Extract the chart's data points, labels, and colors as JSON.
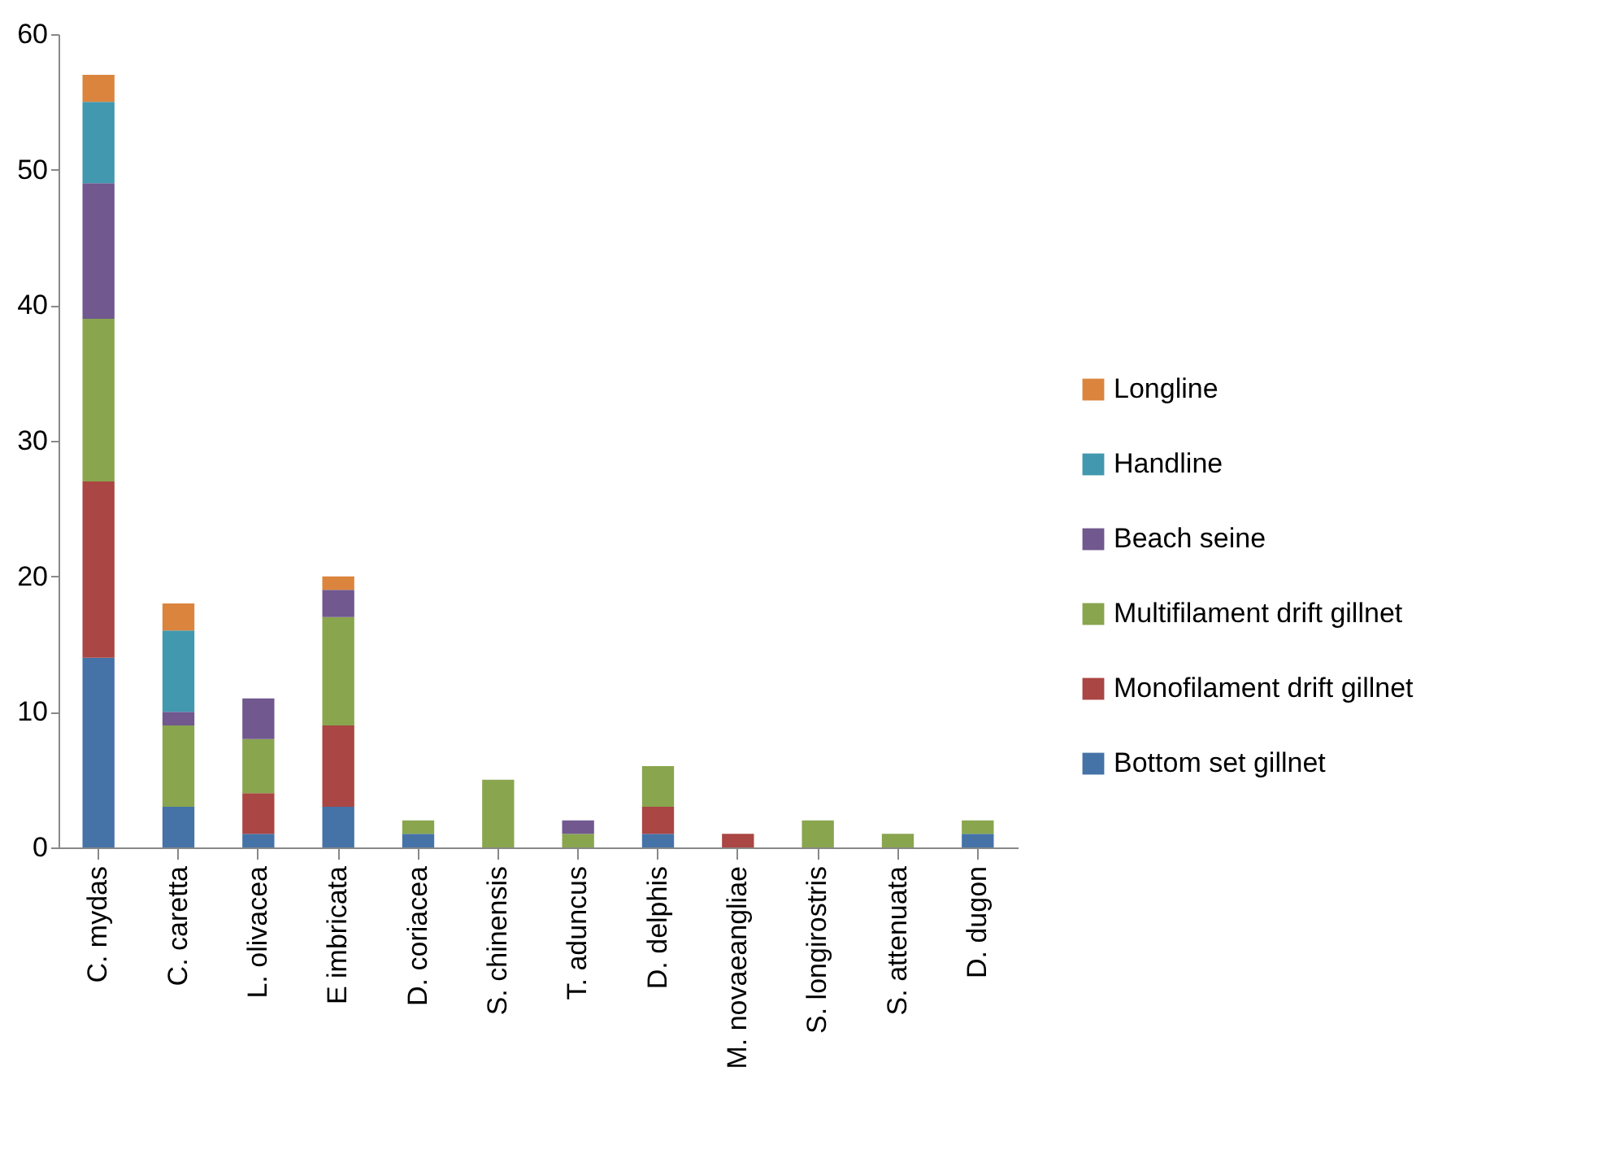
{
  "chart_data": {
    "type": "bar",
    "stacked": true,
    "legend": "right",
    "grid": false,
    "categories": [
      "C. mydas",
      "C. caretta",
      "L. olivacea",
      "E imbricata",
      "D. coriacea",
      "S. chinensis",
      "T. aduncus",
      "D. delphis",
      "M. novaeangliae",
      "S. longirostris",
      "S. attenuata",
      "D. dugon"
    ],
    "ylim": [
      0,
      60
    ],
    "yticks": [
      0,
      10,
      20,
      30,
      40,
      50,
      60
    ],
    "series": [
      {
        "name": "Bottom set gillnet",
        "color": "#4572a7",
        "values": [
          14,
          3,
          1,
          3,
          1,
          0,
          0,
          1,
          0,
          0,
          0,
          1
        ]
      },
      {
        "name": "Monofilament drift gillnet",
        "color": "#aa4643",
        "values": [
          13,
          0,
          3,
          6,
          0,
          0,
          0,
          2,
          1,
          0,
          0,
          0
        ]
      },
      {
        "name": "Multifilament drift gillnet",
        "color": "#89a54e",
        "values": [
          12,
          6,
          4,
          8,
          1,
          5,
          1,
          3,
          0,
          2,
          1,
          1
        ]
      },
      {
        "name": "Beach seine",
        "color": "#71588f",
        "values": [
          10,
          1,
          3,
          2,
          0,
          0,
          1,
          0,
          0,
          0,
          0,
          0
        ]
      },
      {
        "name": "Handline",
        "color": "#4198af",
        "values": [
          6,
          6,
          0,
          0,
          0,
          0,
          0,
          0,
          0,
          0,
          0,
          0
        ]
      },
      {
        "name": "Longline",
        "color": "#db843d",
        "values": [
          2,
          2,
          0,
          1,
          0,
          0,
          0,
          0,
          0,
          0,
          0,
          0
        ]
      }
    ]
  }
}
